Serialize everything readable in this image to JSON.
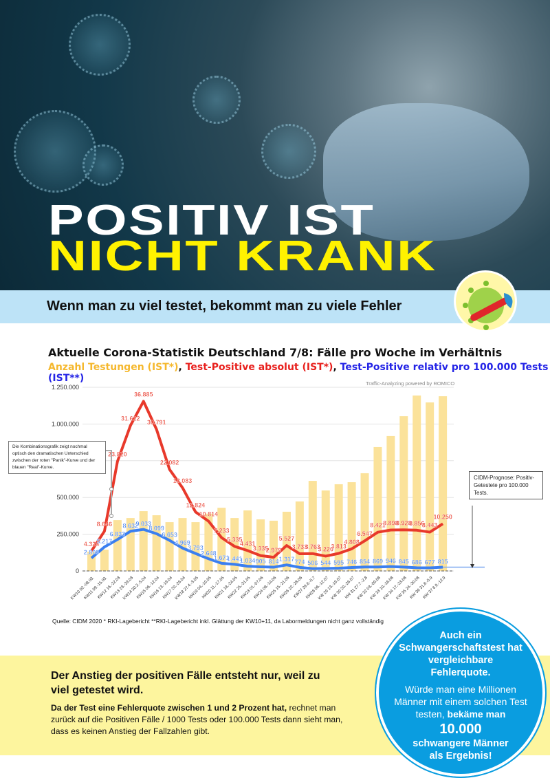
{
  "hero": {
    "title_line1": "POSITIV IST",
    "title_line2": "NICHT KRANK"
  },
  "band": {
    "text": "Wenn man zu viel testet, bekommt man zu viele Fehler"
  },
  "chart_header": {
    "title": "Aktuelle Corona-Statistik Deutschland 7/8: Fälle pro Woche im Verhältnis",
    "legend": [
      {
        "label": "Anzahl Testungen (IST*)",
        "color": "#f5b82e"
      },
      {
        "label": "Test-Positive absolut (IST*)",
        "color": "#e8201d"
      },
      {
        "label": "Test-Positive relativ pro 100.000 Tests (IST**)",
        "color": "#2323e6"
      }
    ],
    "powered_by": "Traffic-Analyzing powered by ROMICO"
  },
  "annotations": {
    "note": "Die Kombinationsgrafik zeigt nochmal optisch den dramatischen Unterschied zwischen der roten \"Panik\"-Kurve und der blauen \"Real\"-Kurve.",
    "prognose": "CIDM-Prognose: Positiv-Getestete pro 100.000 Tests."
  },
  "chart_data": {
    "type": "bar+line",
    "title": "Aktuelle Corona-Statistik Deutschland 7/8: Fälle pro Woche im Verhältnis",
    "ylim": [
      0,
      1250000
    ],
    "y_ticks": [
      "0",
      "250.000",
      "500.000",
      "750.000",
      "1.000.000",
      "1.250.000"
    ],
    "y_tick_values": [
      0,
      250000,
      500000,
      750000,
      1000000,
      1250000
    ],
    "grid": true,
    "line_scale_factor": 31.3,
    "categories": [
      "KW10 02.-08.03.",
      "KW11 09.-15.03.",
      "KW12 16.-22.03",
      "KW13 23.-29.03",
      "KW14 30.3.-5.04",
      "KW15 06.-12.04",
      "KW16 13.-19.04",
      "KW17 20.-26.04",
      "KW18 27.4.-3.05",
      "KW19 04.-10.05",
      "KW20 11.-17.05",
      "KW21 18.-24.05",
      "KW22 25.-31.05",
      "KW23 01.-07.06",
      "KW24 08.-14.06",
      "KW25 15.-21.06",
      "KW26 22.-28.06",
      "KW27 29.6.-5.7",
      "KW28 06.-12.07",
      "KW 29 13.-19.07",
      "KW 30 20.-26.07",
      "KW 31 27.7.-2.8",
      "KW 32 03.-09.08",
      "KW 33 10.-16.08",
      "KW 34 17.-23.08",
      "KW 35 24.-30.08",
      "KW 36 31.8.-5.9",
      "KW 37 6.9.-12.9"
    ],
    "series": [
      {
        "name": "Anzahl Testungen (IST*)",
        "type": "bar",
        "color": "#fbe29a",
        "values": [
          131000,
          145000,
          346000,
          360000,
          407000,
          379000,
          332000,
          360000,
          332000,
          390000,
          430000,
          360000,
          412000,
          351000,
          342000,
          403000,
          473000,
          613000,
          548000,
          590000,
          604000,
          665000,
          843000,
          918000,
          1053000,
          1194000,
          1147000,
          1189000
        ]
      },
      {
        "name": "Test-Positive absolut (IST*)",
        "type": "line",
        "color": "#e8392b",
        "values": [
          4324,
          8646,
          23820,
          31622,
          36885,
          30791,
          22082,
          18083,
          12824,
          10814,
          7233,
          5335,
          4431,
          3335,
          2979,
          5527,
          3733,
          3763,
          3220,
          3813,
          4808,
          6547,
          8421,
          8898,
          8928,
          8856,
          8443,
          10250
        ],
        "labels": [
          "4.324",
          "8.646",
          "23.820",
          "31.622",
          "36.885",
          "30.791",
          "22.082",
          "18.083",
          "12.824",
          "10.814",
          "7.233",
          "5.335",
          "4.431",
          "3.335",
          "2.979",
          "5.527",
          "3.733",
          "3.763",
          "3.220",
          "3.813",
          "4.808",
          "6.547",
          "8.421",
          "8.898",
          "8.928",
          "8.856",
          "8.443",
          "10.250"
        ]
      },
      {
        "name": "Test-Positive relativ pro 100.000 Tests (IST**)",
        "type": "line",
        "color": "#3b7ff0",
        "values": [
          2809,
          5217,
          6833,
          8632,
          9033,
          8099,
          6653,
          4969,
          3793,
          2648,
          1671,
          1441,
          1034,
          905,
          814,
          1317,
          774,
          506,
          544,
          595,
          746,
          854,
          869,
          946,
          845,
          686,
          677,
          815
        ],
        "labels": [
          "2.809",
          "5.217",
          "6.833",
          "8.632",
          "9.033",
          "8.099",
          "6.653",
          "4.969",
          "3.793",
          "2.648",
          "1.671",
          "1.441",
          "1.034",
          "905",
          "814",
          "1.317",
          "774",
          "506",
          "544",
          "595",
          "746",
          "854",
          "869",
          "946",
          "845",
          "686",
          "677",
          "815"
        ]
      }
    ]
  },
  "source": "Quelle: CIDM 2020 * RKI-Lagebericht **RKI-Lagebericht inkl. Glättung der KW10+11, da Labormeldungen nicht ganz vollständig",
  "bottom": {
    "headline": "Der Anstieg der positiven Fälle entsteht nur, weil zu viel getestet wird.",
    "text_bold": "Da der Test eine Fehlerquote zwischen 1 und 2 Prozent hat,",
    "text": " rechnet man zurück auf die Positiven Fälle / 1000 Tests oder 100.000 Tests dann sieht man, dass es keinen Anstieg der Fallzahlen gibt."
  },
  "circle": {
    "headline": "Auch ein Schwangerschaftstest hat vergleichbare Fehlerquote.",
    "text": "Würde man eine Millionen Männer mit einem solchen Test testen,",
    "text_bold": " bekäme man",
    "number": "10.000",
    "result": "schwangere Männer als Ergebnis!"
  }
}
